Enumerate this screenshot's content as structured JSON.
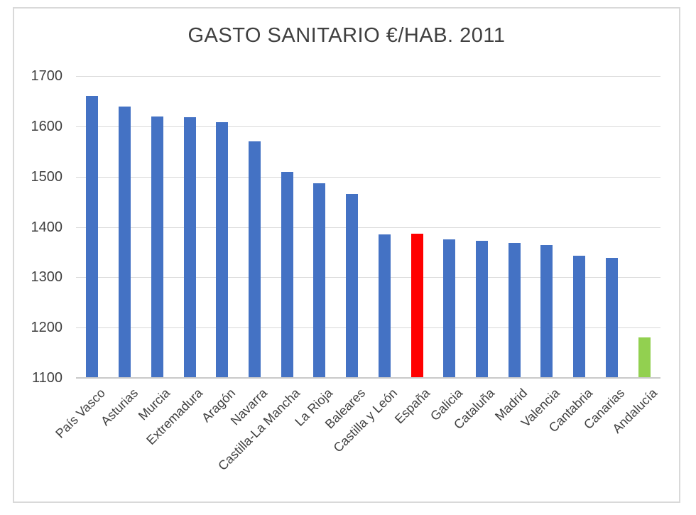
{
  "chart_data": {
    "type": "bar",
    "title": "GASTO SANITARIO €/HAB. 2011",
    "xlabel": "",
    "ylabel": "",
    "legend": "none",
    "grid": true,
    "categories": [
      "País Vasco",
      "Asturias",
      "Murcia",
      "Extremadura",
      "Aragón",
      "Navarra",
      "Castilla-La Mancha",
      "La Rioja",
      "Baleares",
      "Castilla y León",
      "España",
      "Galicia",
      "Cataluña",
      "Madrid",
      "Valencia",
      "Cantabria",
      "Canarias",
      "Andalucía"
    ],
    "values": [
      1660,
      1639,
      1620,
      1618,
      1608,
      1570,
      1510,
      1487,
      1465,
      1385,
      1386,
      1376,
      1372,
      1368,
      1364,
      1343,
      1338,
      1181
    ],
    "colors": [
      "#4472C4",
      "#4472C4",
      "#4472C4",
      "#4472C4",
      "#4472C4",
      "#4472C4",
      "#4472C4",
      "#4472C4",
      "#4472C4",
      "#4472C4",
      "#FF0000",
      "#4472C4",
      "#4472C4",
      "#4472C4",
      "#4472C4",
      "#4472C4",
      "#4472C4",
      "#92D050"
    ],
    "highlighted_bars": {
      "España": "#FF0000",
      "Andalucía": "#92D050"
    },
    "default_bar_color": "#4472C4",
    "ylim": [
      1100,
      1700
    ],
    "yticks": [
      1100,
      1200,
      1300,
      1400,
      1500,
      1600,
      1700
    ],
    "gridline_color": "#D9D9D9",
    "axis_line_color": "#C9C9C9",
    "text_color": "#404040",
    "frame_border_color": "#D9D9D9"
  }
}
